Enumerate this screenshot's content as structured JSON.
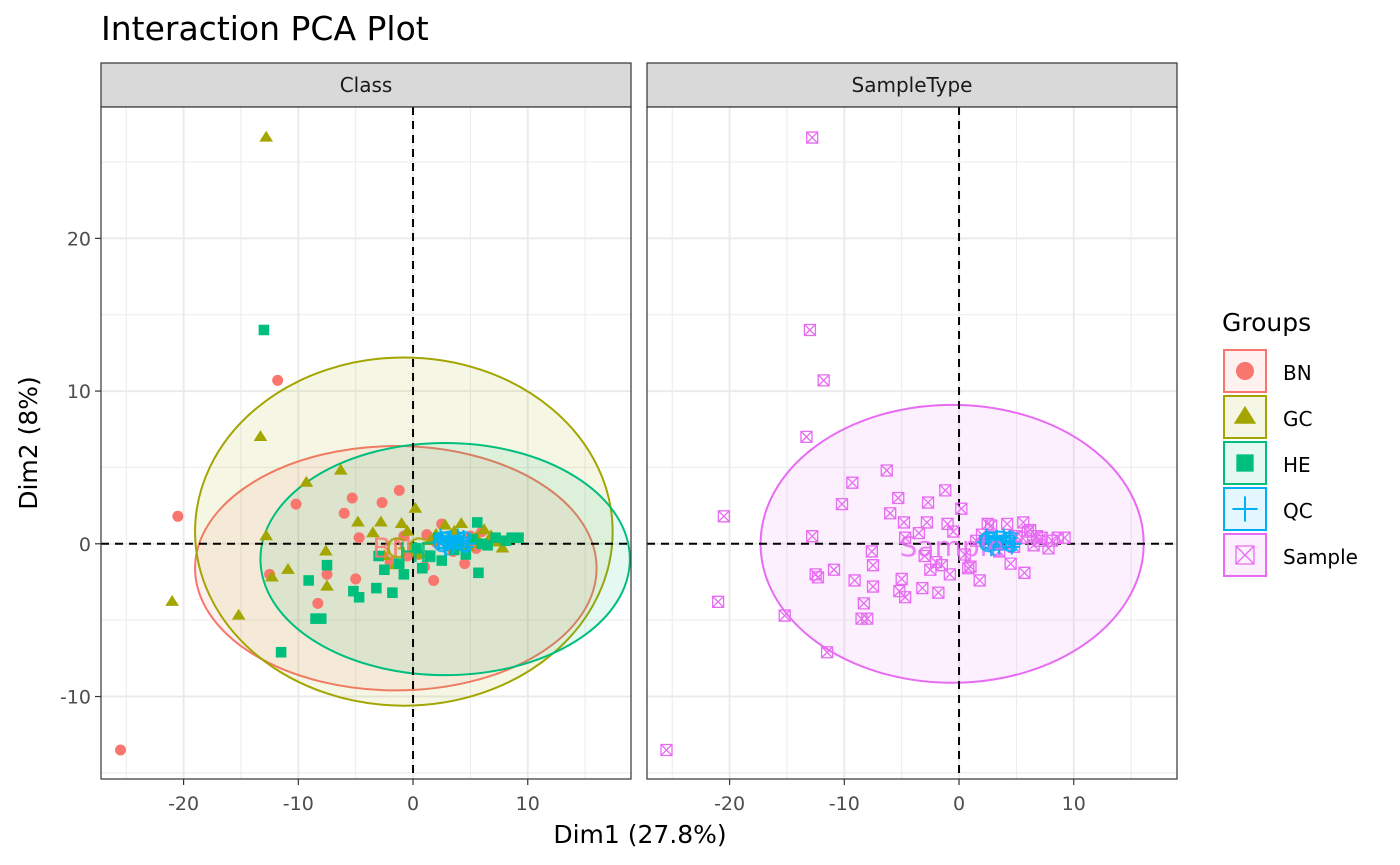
{
  "chart_data": {
    "type": "scatter",
    "title": "Interaction PCA Plot",
    "xlabel": "Dim1 (27.8%)",
    "ylabel": "Dim2 (8%)",
    "xlim": [
      -27.2,
      19.0
    ],
    "ylim": [
      -15.4,
      28.6
    ],
    "x_ticks": [
      -20,
      -10,
      0,
      10
    ],
    "x_tick_labels": [
      "-20",
      "-10",
      "0",
      "10"
    ],
    "y_ticks": [
      -10,
      0,
      10,
      20
    ],
    "y_tick_labels": [
      "-10",
      "0",
      "10",
      "20"
    ],
    "grid": true,
    "legend": {
      "title": "Groups",
      "position": "right",
      "entries": [
        {
          "label": "BN",
          "color": "#F8766D",
          "shape": "circle"
        },
        {
          "label": "GC",
          "color": "#A3A500",
          "shape": "triangle"
        },
        {
          "label": "HE",
          "color": "#00BF7D",
          "shape": "square"
        },
        {
          "label": "QC",
          "color": "#00B0F6",
          "shape": "cross"
        },
        {
          "label": "Sample",
          "color": "#E76BF3",
          "shape": "boxcross"
        }
      ]
    },
    "facets": [
      {
        "strip": "Class",
        "series": [
          {
            "name": "BN",
            "color": "#F8766D",
            "shape": "circle",
            "ellipse": {
              "cx": -1.5,
              "cy": -1.6,
              "rx": 17.5,
              "ry": 8.0
            },
            "points": [
              [
                -25.5,
                -13.5
              ],
              [
                -20.5,
                1.8
              ],
              [
                -11.8,
                10.7
              ],
              [
                -12.5,
                -2.0
              ],
              [
                -8.3,
                -3.9
              ],
              [
                -10.2,
                2.6
              ],
              [
                -7.5,
                -2.0
              ],
              [
                -6.0,
                2.0
              ],
              [
                -5.3,
                3.0
              ],
              [
                -5.0,
                -2.3
              ],
              [
                -4.7,
                0.4
              ],
              [
                -2.7,
                2.7
              ],
              [
                -1.2,
                3.5
              ],
              [
                -2.0,
                -1.2
              ],
              [
                -0.8,
                0.5
              ],
              [
                -0.5,
                -0.8
              ],
              [
                0.5,
                -0.7
              ],
              [
                1.0,
                -1.5
              ],
              [
                1.8,
                -2.4
              ],
              [
                2.5,
                1.3
              ],
              [
                3.0,
                0.0
              ],
              [
                3.5,
                -0.5
              ],
              [
                4.0,
                0.2
              ],
              [
                4.5,
                -1.3
              ],
              [
                5.0,
                0.5
              ],
              [
                5.5,
                -0.3
              ],
              [
                6.0,
                0.8
              ],
              [
                7.0,
                0.2
              ],
              [
                1.2,
                0.6
              ],
              [
                2.0,
                0.1
              ]
            ]
          },
          {
            "name": "GC",
            "color": "#A3A500",
            "shape": "triangle",
            "ellipse": {
              "cx": -0.8,
              "cy": 0.8,
              "rx": 18.2,
              "ry": 11.4
            },
            "points": [
              [
                -12.8,
                26.6
              ],
              [
                -13.3,
                7.0
              ],
              [
                -21.0,
                -3.8
              ],
              [
                -15.2,
                -4.7
              ],
              [
                -12.8,
                0.5
              ],
              [
                -12.3,
                -2.2
              ],
              [
                -10.9,
                -1.7
              ],
              [
                -9.3,
                4.0
              ],
              [
                -7.6,
                -0.5
              ],
              [
                -7.5,
                -2.8
              ],
              [
                -6.3,
                4.8
              ],
              [
                -4.8,
                1.4
              ],
              [
                -3.5,
                0.7
              ],
              [
                -2.8,
                1.4
              ],
              [
                -2.5,
                -0.8
              ],
              [
                -1.5,
                -1.4
              ],
              [
                -1.0,
                1.3
              ],
              [
                -0.5,
                0.8
              ],
              [
                0.2,
                2.3
              ],
              [
                0.6,
                -0.7
              ],
              [
                1.5,
                0.2
              ],
              [
                2.0,
                0.6
              ],
              [
                2.8,
                1.2
              ],
              [
                3.2,
                0.3
              ],
              [
                4.2,
                1.3
              ],
              [
                4.8,
                -0.2
              ],
              [
                5.5,
                0.4
              ],
              [
                6.2,
                0.9
              ],
              [
                6.8,
                0.5
              ],
              [
                7.2,
                0.1
              ],
              [
                7.8,
                -0.3
              ],
              [
                8.3,
                0.3
              ],
              [
                3.6,
                0.8
              ],
              [
                5.9,
                0.0
              ]
            ]
          },
          {
            "name": "HE",
            "color": "#00BF7D",
            "shape": "square",
            "ellipse": {
              "cx": 2.8,
              "cy": -1.0,
              "rx": 16.1,
              "ry": 7.6
            },
            "points": [
              [
                -13.0,
                14.0
              ],
              [
                -11.5,
                -7.1
              ],
              [
                -9.1,
                -2.4
              ],
              [
                -8.5,
                -4.9
              ],
              [
                -8.0,
                -4.9
              ],
              [
                -7.5,
                -1.4
              ],
              [
                -5.2,
                -3.1
              ],
              [
                -4.7,
                -3.5
              ],
              [
                -3.2,
                -2.9
              ],
              [
                -3.0,
                -0.8
              ],
              [
                -2.5,
                -1.7
              ],
              [
                -1.8,
                -3.2
              ],
              [
                -1.2,
                -1.3
              ],
              [
                -0.8,
                -2.0
              ],
              [
                0.3,
                -0.3
              ],
              [
                0.8,
                -1.6
              ],
              [
                1.5,
                -0.8
              ],
              [
                2.2,
                0.4
              ],
              [
                2.5,
                -1.1
              ],
              [
                3.0,
                0.2
              ],
              [
                3.6,
                -0.4
              ],
              [
                4.0,
                0.1
              ],
              [
                4.6,
                -0.7
              ],
              [
                5.2,
                0.3
              ],
              [
                5.6,
                1.4
              ],
              [
                6.0,
                0.0
              ],
              [
                6.5,
                -0.1
              ],
              [
                7.2,
                0.4
              ],
              [
                8.1,
                0.2
              ],
              [
                8.6,
                0.4
              ],
              [
                9.2,
                0.4
              ],
              [
                5.7,
                -1.9
              ],
              [
                3.1,
                0.0
              ]
            ]
          },
          {
            "name": "QC",
            "color": "#00B0F6",
            "shape": "cross",
            "ellipse": {
              "cx": 3.4,
              "cy": 0.2,
              "rx": 1.6,
              "ry": 0.6
            },
            "points": [
              [
                2.2,
                0.1
              ],
              [
                2.6,
                0.3
              ],
              [
                3.0,
                0.0
              ],
              [
                3.3,
                0.4
              ],
              [
                3.7,
                0.1
              ],
              [
                4.1,
                0.2
              ],
              [
                2.8,
                -0.3
              ],
              [
                3.5,
                -0.2
              ],
              [
                4.4,
                0.4
              ],
              [
                4.8,
                0.0
              ],
              [
                2.4,
                0.5
              ],
              [
                3.9,
                0.5
              ],
              [
                4.6,
                -0.2
              ],
              [
                3.1,
                0.3
              ]
            ]
          }
        ],
        "labels": [
          {
            "text": "BN",
            "x": -1.8,
            "y": -0.3,
            "color": "#F8766D"
          },
          {
            "text": "GC",
            "x": -0.6,
            "y": -0.3,
            "color": "#A3A500"
          },
          {
            "text": "HE",
            "x": 0.4,
            "y": -0.6,
            "color": "#00BF7D"
          },
          {
            "text": "QC",
            "x": 3.4,
            "y": 0.1,
            "color": "#00B0F6"
          }
        ]
      },
      {
        "strip": "SampleType",
        "series": [
          {
            "name": "Sample",
            "color": "#E76BF3",
            "shape": "boxcross",
            "ellipse": {
              "cx": -0.6,
              "cy": 0.0,
              "rx": 16.7,
              "ry": 9.1
            },
            "points": [
              [
                -25.5,
                -13.5
              ],
              [
                -20.5,
                1.8
              ],
              [
                -21.0,
                -3.8
              ],
              [
                -15.2,
                -4.7
              ],
              [
                -12.8,
                26.6
              ],
              [
                -13.0,
                14.0
              ],
              [
                -11.8,
                10.7
              ],
              [
                -13.3,
                7.0
              ],
              [
                -12.8,
                0.5
              ],
              [
                -11.5,
                -7.1
              ],
              [
                -12.5,
                -2.0
              ],
              [
                -12.3,
                -2.2
              ],
              [
                -10.9,
                -1.7
              ],
              [
                -10.2,
                2.6
              ],
              [
                -9.3,
                4.0
              ],
              [
                -9.1,
                -2.4
              ],
              [
                -8.5,
                -4.9
              ],
              [
                -8.0,
                -4.9
              ],
              [
                -8.3,
                -3.9
              ],
              [
                -7.6,
                -0.5
              ],
              [
                -7.5,
                -2.8
              ],
              [
                -7.5,
                -1.4
              ],
              [
                -6.3,
                4.8
              ],
              [
                -6.0,
                2.0
              ],
              [
                -5.3,
                3.0
              ],
              [
                -5.2,
                -3.1
              ],
              [
                -5.0,
                -2.3
              ],
              [
                -4.8,
                1.4
              ],
              [
                -4.7,
                -3.5
              ],
              [
                -4.7,
                0.4
              ],
              [
                -3.5,
                0.7
              ],
              [
                -3.2,
                -2.9
              ],
              [
                -3.0,
                -0.8
              ],
              [
                -2.8,
                1.4
              ],
              [
                -2.7,
                2.7
              ],
              [
                -2.5,
                -1.7
              ],
              [
                -2.0,
                -1.2
              ],
              [
                -1.8,
                -3.2
              ],
              [
                -1.2,
                3.5
              ],
              [
                -1.5,
                -1.4
              ],
              [
                -1.0,
                1.3
              ],
              [
                -0.8,
                -2.0
              ],
              [
                -0.5,
                0.8
              ],
              [
                0.2,
                2.3
              ],
              [
                0.5,
                -0.7
              ],
              [
                0.8,
                -1.6
              ],
              [
                1.0,
                -1.5
              ],
              [
                1.5,
                0.2
              ],
              [
                1.8,
                -2.4
              ],
              [
                2.0,
                0.6
              ],
              [
                2.5,
                1.3
              ],
              [
                2.8,
                1.2
              ],
              [
                3.0,
                0.0
              ],
              [
                3.5,
                -0.5
              ],
              [
                4.0,
                0.2
              ],
              [
                4.2,
                1.3
              ],
              [
                4.5,
                -1.3
              ],
              [
                4.8,
                -0.2
              ],
              [
                5.0,
                0.5
              ],
              [
                5.5,
                0.4
              ],
              [
                5.6,
                1.4
              ],
              [
                5.7,
                -1.9
              ],
              [
                6.0,
                0.8
              ],
              [
                6.2,
                0.9
              ],
              [
                6.5,
                -0.1
              ],
              [
                6.8,
                0.5
              ],
              [
                7.0,
                0.2
              ],
              [
                7.2,
                0.4
              ],
              [
                7.8,
                -0.3
              ],
              [
                8.1,
                0.2
              ],
              [
                8.6,
                0.4
              ],
              [
                9.2,
                0.4
              ]
            ]
          },
          {
            "name": "QC",
            "color": "#00B0F6",
            "shape": "cross",
            "ellipse": {
              "cx": 3.4,
              "cy": 0.2,
              "rx": 1.6,
              "ry": 0.6
            },
            "points": [
              [
                2.2,
                0.1
              ],
              [
                2.6,
                0.3
              ],
              [
                3.0,
                0.0
              ],
              [
                3.3,
                0.4
              ],
              [
                3.7,
                0.1
              ],
              [
                4.1,
                0.2
              ],
              [
                2.8,
                -0.3
              ],
              [
                3.5,
                -0.2
              ],
              [
                4.4,
                0.4
              ],
              [
                4.8,
                0.0
              ],
              [
                2.4,
                0.5
              ],
              [
                3.9,
                0.5
              ],
              [
                4.6,
                -0.2
              ],
              [
                3.1,
                0.3
              ]
            ]
          }
        ],
        "labels": [
          {
            "text": "Sample",
            "x": -0.6,
            "y": -0.2,
            "color": "#E76BF3"
          },
          {
            "text": "QC",
            "x": 3.4,
            "y": 0.1,
            "color": "#00B0F6"
          }
        ]
      }
    ]
  }
}
